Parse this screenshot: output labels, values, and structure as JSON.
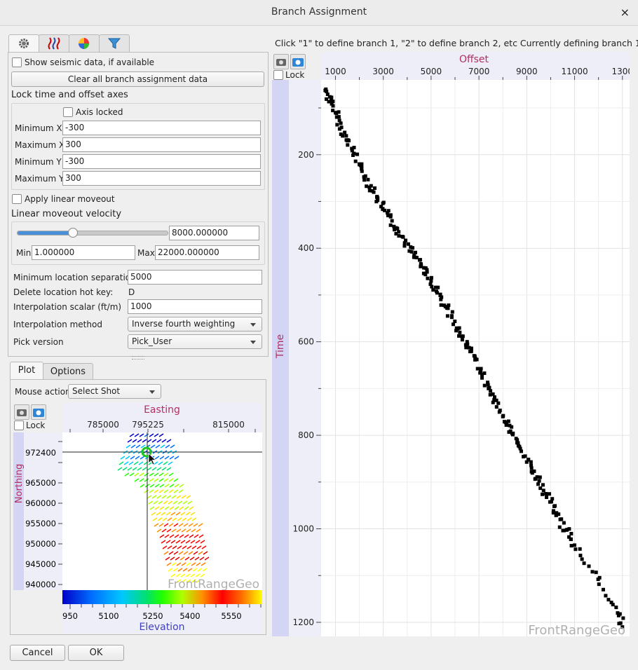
{
  "window": {
    "title": "Branch Assignment",
    "close": "×"
  },
  "top_tabs": [
    {
      "icon": "gear-icon"
    },
    {
      "icon": "seismic-traces-icon"
    },
    {
      "icon": "color-wheel-icon"
    },
    {
      "icon": "filter-icon"
    }
  ],
  "settings": {
    "show_seismic_label": "Show seismic data, if available",
    "show_seismic_checked": false,
    "clear_button": "Clear all branch assignment data",
    "lock_section_title": "Lock time and offset axes",
    "axis_locked_label": "Axis locked",
    "axis_locked_checked": false,
    "min_x_label": "Minimum X",
    "min_x": "-300",
    "max_x_label": "Maximum X",
    "max_x": "300",
    "min_y_label": "Minimum Y",
    "min_y": "-300",
    "max_y_label": "Maximum Y",
    "max_y": "300",
    "apply_lmo_label": "Apply linear moveout",
    "apply_lmo_checked": false,
    "lmo_velocity_title": "Linear moveout velocity",
    "lmo_slider_fraction": 0.363,
    "lmo_velocity": "8000.000000",
    "min_label": "Min",
    "min_value": "1.000000",
    "max_label": "Max",
    "max_value": "22000.000000",
    "min_loc_sep_label": "Minimum location separation",
    "min_loc_sep": "5000",
    "delete_hotkey_label": "Delete location hot key:",
    "delete_hotkey": "D",
    "interp_scalar_label": "Interpolation scalar (ft/m)",
    "interp_scalar": "1000",
    "interp_method_label": "Interpolation method",
    "interp_method": "Inverse fourth weighting",
    "pick_version_label": "Pick version",
    "pick_version": "Pick_User"
  },
  "bottom_tabs": {
    "plot": "Plot",
    "options": "Options"
  },
  "map": {
    "mouse_action_label": "Mouse action",
    "mouse_action": "Select Shot",
    "lock_label": "Lock",
    "x_title": "Easting",
    "x_ticks": [
      "785000",
      "795225",
      "815000"
    ],
    "y_title": "Northing",
    "y_ticks": [
      "972400",
      "965000",
      "960000",
      "955000",
      "950000",
      "945000",
      "940000"
    ],
    "watermark": "FrontRangeGeo",
    "colorbar_ticks": [
      "950",
      "5100",
      "5250",
      "5400",
      "5550"
    ],
    "colorbar_title": "Elevation",
    "colors": [
      "#0000c8",
      "#0070ff",
      "#00c8ff",
      "#00e070",
      "#20ff00",
      "#b0ff00",
      "#ffe000",
      "#ff9000",
      "#ff0000",
      "#e00000",
      "#ff8000",
      "#ffff00"
    ]
  },
  "plot": {
    "instruction": "Click \"1\" to define branch 1, \"2\" to define branch 2, etc  Currently defining branch 1",
    "lock_label": "Lock",
    "x_title": "Offset",
    "y_title": "Time",
    "watermark": "FrontRangeGeo"
  },
  "chart_data": {
    "type": "scatter",
    "xlabel": "Offset",
    "ylabel": "Time",
    "x_ticks": [
      "1000",
      "3000",
      "5000",
      "7000",
      "9000",
      "11000",
      "1300"
    ],
    "y_ticks": [
      "200",
      "400",
      "600",
      "800",
      "1000",
      "1200"
    ],
    "xlim": [
      400,
      13300
    ],
    "ylim": [
      40,
      1230
    ],
    "y_inverted": true,
    "grid": true,
    "series": [
      {
        "x": [
          600,
          1000,
          1500,
          2000,
          2600,
          3200,
          3800,
          4400,
          5000,
          5600,
          6200,
          6800,
          7400,
          8000,
          8600,
          9200,
          9800,
          10400,
          11000,
          11600,
          12200,
          12800,
          13000
        ],
        "y": [
          60,
          110,
          170,
          220,
          280,
          330,
          375,
          420,
          470,
          525,
          580,
          630,
          700,
          760,
          810,
          870,
          925,
          980,
          1035,
          1080,
          1130,
          1180,
          1210
        ]
      }
    ]
  },
  "footer": {
    "cancel": "Cancel",
    "ok": "OK"
  }
}
